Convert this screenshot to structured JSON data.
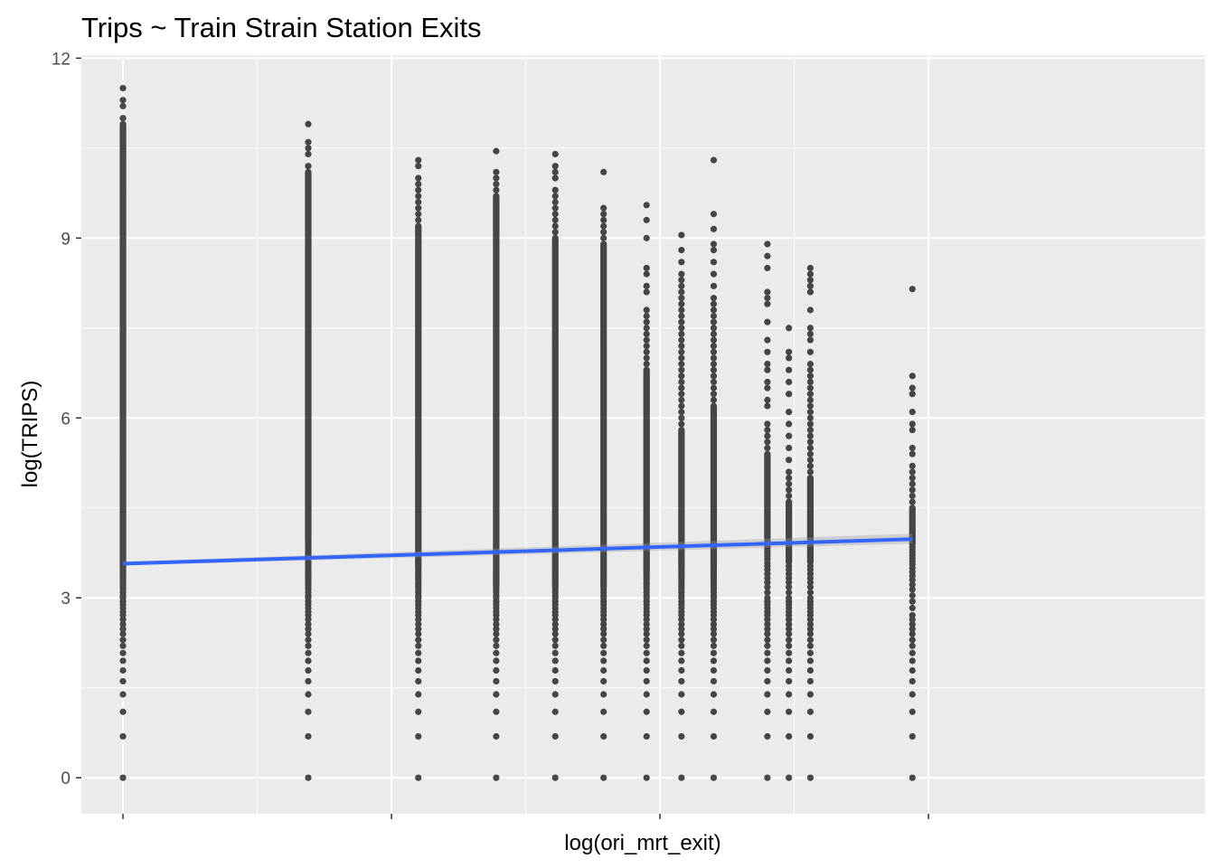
{
  "chart_data": {
    "type": "scatter",
    "title": "Trips ~ Train Strain Station Exits",
    "xlabel": "log(ori_mrt_exit)",
    "ylabel": "log(TRIPS)",
    "ylim": [
      -0.6,
      12.05
    ],
    "xlim": [
      -0.155,
      4.03
    ],
    "y_ticks": [
      0,
      3,
      6,
      9,
      12
    ],
    "y_tick_labels": [
      "0",
      "3",
      "6",
      "9",
      "12"
    ],
    "x_ticks": [
      0,
      1,
      2,
      3
    ],
    "x_tick_labels": [
      "",
      "",
      "",
      ""
    ],
    "grid": true,
    "background": "#ebebeb",
    "grid_color": "#ffffff",
    "point_color": "#000000",
    "point_opacity": 0.7,
    "columns": [
      {
        "x": 0.0,
        "min": 0,
        "max": 11.5,
        "solid_min": 3.5,
        "solid_max": 10.9,
        "outliers": [
          0,
          0.69,
          1.1,
          1.39,
          1.61,
          1.79,
          1.95,
          2.08,
          2.2,
          2.3,
          2.4,
          2.48,
          2.56,
          2.64,
          2.71,
          2.77,
          2.83,
          2.89,
          2.94,
          3.0,
          3.04,
          3.09,
          3.14,
          3.18,
          3.22,
          3.26,
          3.3,
          3.33,
          3.37,
          3.4,
          3.43,
          3.47,
          9.8,
          10.0,
          10.4,
          11.0,
          11.2,
          11.3,
          11.5
        ]
      },
      {
        "x": 0.69,
        "min": 0,
        "max": 10.9,
        "solid_min": 4.0,
        "solid_max": 10.1,
        "outliers": [
          0,
          0.69,
          1.1,
          1.39,
          1.61,
          1.79,
          1.95,
          2.08,
          2.2,
          2.3,
          2.4,
          2.48,
          2.56,
          2.64,
          2.71,
          2.77,
          2.83,
          2.89,
          2.94,
          3.0,
          3.04,
          3.09,
          3.14,
          3.18,
          3.22,
          3.26,
          3.3,
          3.33,
          3.37,
          3.4,
          3.43,
          3.47,
          3.5,
          3.53,
          3.56,
          3.58,
          3.61,
          3.64,
          3.66,
          3.69,
          3.71,
          3.74,
          3.76,
          3.78,
          3.81,
          3.83,
          3.85,
          3.87,
          3.89,
          3.91,
          3.93,
          3.95,
          3.97,
          3.99,
          10.2,
          10.4,
          10.5,
          10.6,
          10.9
        ]
      },
      {
        "x": 1.1,
        "min": 0,
        "max": 10.3,
        "solid_min": 3.5,
        "solid_max": 9.2,
        "outliers": [
          0,
          0.69,
          1.1,
          1.39,
          1.61,
          1.79,
          1.95,
          2.08,
          2.2,
          2.3,
          2.4,
          2.48,
          2.56,
          2.64,
          2.71,
          2.77,
          2.83,
          2.89,
          2.94,
          3.0,
          3.04,
          3.09,
          3.14,
          3.18,
          3.22,
          3.26,
          3.3,
          3.33,
          3.37,
          3.4,
          3.43,
          3.47,
          9.3,
          9.4,
          9.5,
          9.6,
          9.7,
          9.8,
          9.9,
          10.0,
          10.2,
          10.3
        ]
      },
      {
        "x": 1.39,
        "min": 0,
        "max": 10.45,
        "solid_min": 3.2,
        "solid_max": 9.7,
        "outliers": [
          0,
          0.69,
          1.1,
          1.39,
          1.61,
          1.79,
          1.95,
          2.08,
          2.2,
          2.3,
          2.4,
          2.48,
          2.56,
          2.64,
          2.71,
          2.77,
          2.83,
          2.89,
          2.94,
          3.0,
          3.04,
          3.09,
          3.14,
          3.18,
          9.8,
          9.9,
          10.0,
          10.1,
          10.45
        ]
      },
      {
        "x": 1.61,
        "min": 0,
        "max": 10.4,
        "solid_min": 3.2,
        "solid_max": 9.0,
        "outliers": [
          0,
          0.69,
          1.1,
          1.39,
          1.61,
          1.79,
          1.95,
          2.08,
          2.2,
          2.3,
          2.4,
          2.48,
          2.56,
          2.64,
          2.71,
          2.77,
          2.83,
          2.89,
          2.94,
          3.0,
          3.04,
          3.09,
          3.14,
          3.18,
          9.1,
          9.2,
          9.3,
          9.4,
          9.5,
          9.6,
          9.7,
          9.8,
          10.0,
          10.1,
          10.2,
          10.4
        ]
      },
      {
        "x": 1.79,
        "min": 0,
        "max": 10.1,
        "solid_min": 3.2,
        "solid_max": 8.9,
        "outliers": [
          0,
          0.69,
          1.1,
          1.39,
          1.61,
          1.79,
          1.95,
          2.08,
          2.2,
          2.3,
          2.4,
          2.48,
          2.56,
          2.64,
          2.71,
          2.77,
          2.83,
          2.89,
          2.94,
          3.0,
          3.04,
          3.09,
          3.14,
          3.18,
          9.0,
          9.1,
          9.2,
          9.3,
          9.4,
          9.5,
          10.1
        ]
      },
      {
        "x": 1.95,
        "min": 0,
        "max": 9.55,
        "solid_min": 3.4,
        "solid_max": 6.8,
        "outliers": [
          0,
          0.69,
          1.1,
          1.39,
          1.61,
          1.79,
          1.95,
          2.08,
          2.2,
          2.3,
          2.4,
          2.48,
          2.56,
          2.64,
          2.71,
          2.77,
          2.83,
          2.89,
          2.94,
          3.0,
          3.04,
          3.09,
          3.14,
          3.18,
          3.22,
          3.26,
          3.3,
          3.33,
          3.37,
          6.9,
          7.0,
          7.1,
          7.2,
          7.3,
          7.4,
          7.5,
          7.6,
          7.7,
          7.8,
          8.1,
          8.2,
          8.4,
          8.5,
          9.0,
          9.3,
          9.55
        ]
      },
      {
        "x": 2.08,
        "min": 0,
        "max": 9.05,
        "solid_min": 3.5,
        "solid_max": 5.8,
        "outliers": [
          0,
          0.69,
          1.1,
          1.39,
          1.61,
          1.79,
          1.95,
          2.08,
          2.2,
          2.3,
          2.4,
          2.48,
          2.56,
          2.64,
          2.71,
          2.77,
          2.83,
          2.89,
          2.94,
          3.0,
          3.04,
          3.09,
          3.14,
          3.18,
          3.22,
          3.26,
          3.3,
          3.33,
          3.37,
          3.4,
          3.43,
          3.47,
          5.9,
          6.0,
          6.1,
          6.2,
          6.3,
          6.4,
          6.5,
          6.6,
          6.7,
          6.8,
          6.9,
          7.0,
          7.1,
          7.2,
          7.3,
          7.4,
          7.5,
          7.6,
          7.7,
          7.8,
          7.9,
          8.0,
          8.1,
          8.2,
          8.3,
          8.4,
          8.6,
          8.8,
          9.05
        ]
      },
      {
        "x": 2.2,
        "min": 0,
        "max": 10.3,
        "solid_min": 3.5,
        "solid_max": 6.2,
        "outliers": [
          0,
          0.69,
          1.1,
          1.39,
          1.61,
          1.79,
          1.95,
          2.08,
          2.2,
          2.3,
          2.4,
          2.48,
          2.56,
          2.64,
          2.71,
          2.77,
          2.83,
          2.89,
          2.94,
          3.0,
          3.04,
          3.09,
          3.14,
          3.18,
          3.22,
          3.26,
          3.3,
          3.33,
          3.37,
          3.4,
          3.43,
          3.47,
          6.3,
          6.4,
          6.5,
          6.6,
          6.7,
          6.8,
          6.9,
          7.0,
          7.1,
          7.2,
          7.3,
          7.4,
          7.5,
          7.6,
          7.7,
          7.8,
          7.9,
          8.0,
          8.2,
          8.4,
          8.6,
          8.8,
          8.9,
          9.15,
          9.4,
          10.3
        ]
      },
      {
        "x": 2.4,
        "min": 0,
        "max": 8.9,
        "solid_min": 4.0,
        "solid_max": 5.4,
        "outliers": [
          0,
          0.69,
          1.1,
          1.39,
          1.61,
          1.79,
          1.95,
          2.08,
          2.2,
          2.3,
          2.4,
          2.48,
          2.56,
          2.64,
          2.71,
          2.77,
          2.83,
          2.89,
          2.94,
          3.0,
          3.09,
          3.18,
          3.26,
          3.33,
          3.4,
          3.47,
          3.53,
          3.58,
          3.64,
          3.69,
          3.74,
          3.78,
          3.83,
          3.87,
          3.91,
          3.95,
          5.5,
          5.6,
          5.7,
          5.8,
          5.9,
          6.2,
          6.3,
          6.5,
          6.6,
          6.8,
          6.9,
          7.1,
          7.3,
          7.6,
          7.9,
          8.0,
          8.1,
          8.5,
          8.7,
          8.9
        ]
      },
      {
        "x": 2.48,
        "min": 0,
        "max": 7.5,
        "solid_min": 3.6,
        "solid_max": 4.6,
        "outliers": [
          0,
          0.69,
          1.1,
          1.39,
          1.61,
          1.79,
          1.95,
          2.08,
          2.2,
          2.3,
          2.4,
          2.48,
          2.56,
          2.64,
          2.71,
          2.77,
          2.83,
          2.89,
          2.94,
          3.0,
          3.09,
          3.18,
          3.26,
          3.33,
          3.4,
          3.47,
          3.53,
          4.7,
          4.8,
          4.9,
          5.0,
          5.1,
          5.3,
          5.5,
          5.7,
          5.9,
          6.1,
          6.4,
          6.6,
          6.8,
          7.0,
          7.1,
          7.5
        ]
      },
      {
        "x": 2.56,
        "min": 0,
        "max": 8.5,
        "solid_min": 3.6,
        "solid_max": 5.0,
        "outliers": [
          0,
          0.69,
          1.1,
          1.39,
          1.61,
          1.79,
          1.95,
          2.08,
          2.2,
          2.3,
          2.4,
          2.48,
          2.56,
          2.64,
          2.71,
          2.77,
          2.83,
          2.89,
          2.94,
          3.0,
          3.09,
          3.18,
          3.26,
          3.33,
          3.4,
          3.47,
          3.53,
          5.1,
          5.2,
          5.3,
          5.4,
          5.5,
          5.6,
          5.7,
          5.8,
          5.9,
          6.0,
          6.1,
          6.2,
          6.3,
          6.4,
          6.5,
          6.6,
          6.7,
          6.8,
          6.9,
          7.1,
          7.3,
          7.4,
          7.5,
          7.8,
          8.1,
          8.2,
          8.3,
          8.4,
          8.5
        ]
      },
      {
        "x": 2.94,
        "min": 0,
        "max": 8.15,
        "solid_min": 3.9,
        "solid_max": 4.5,
        "outliers": [
          0,
          0.69,
          1.1,
          1.39,
          1.61,
          1.79,
          1.95,
          2.08,
          2.2,
          2.3,
          2.4,
          2.48,
          2.56,
          2.64,
          2.71,
          2.83,
          2.94,
          3.04,
          3.14,
          3.22,
          3.3,
          3.37,
          3.43,
          3.5,
          3.56,
          3.61,
          3.66,
          3.71,
          3.76,
          3.81,
          3.85,
          4.6,
          4.7,
          4.8,
          4.9,
          5.0,
          5.1,
          5.2,
          5.4,
          5.5,
          5.8,
          5.9,
          6.1,
          6.4,
          6.5,
          6.7,
          8.15
        ]
      }
    ],
    "fit_line": {
      "x": [
        0,
        2.94
      ],
      "y": [
        3.57,
        3.98
      ],
      "color": "#3366ff"
    }
  }
}
